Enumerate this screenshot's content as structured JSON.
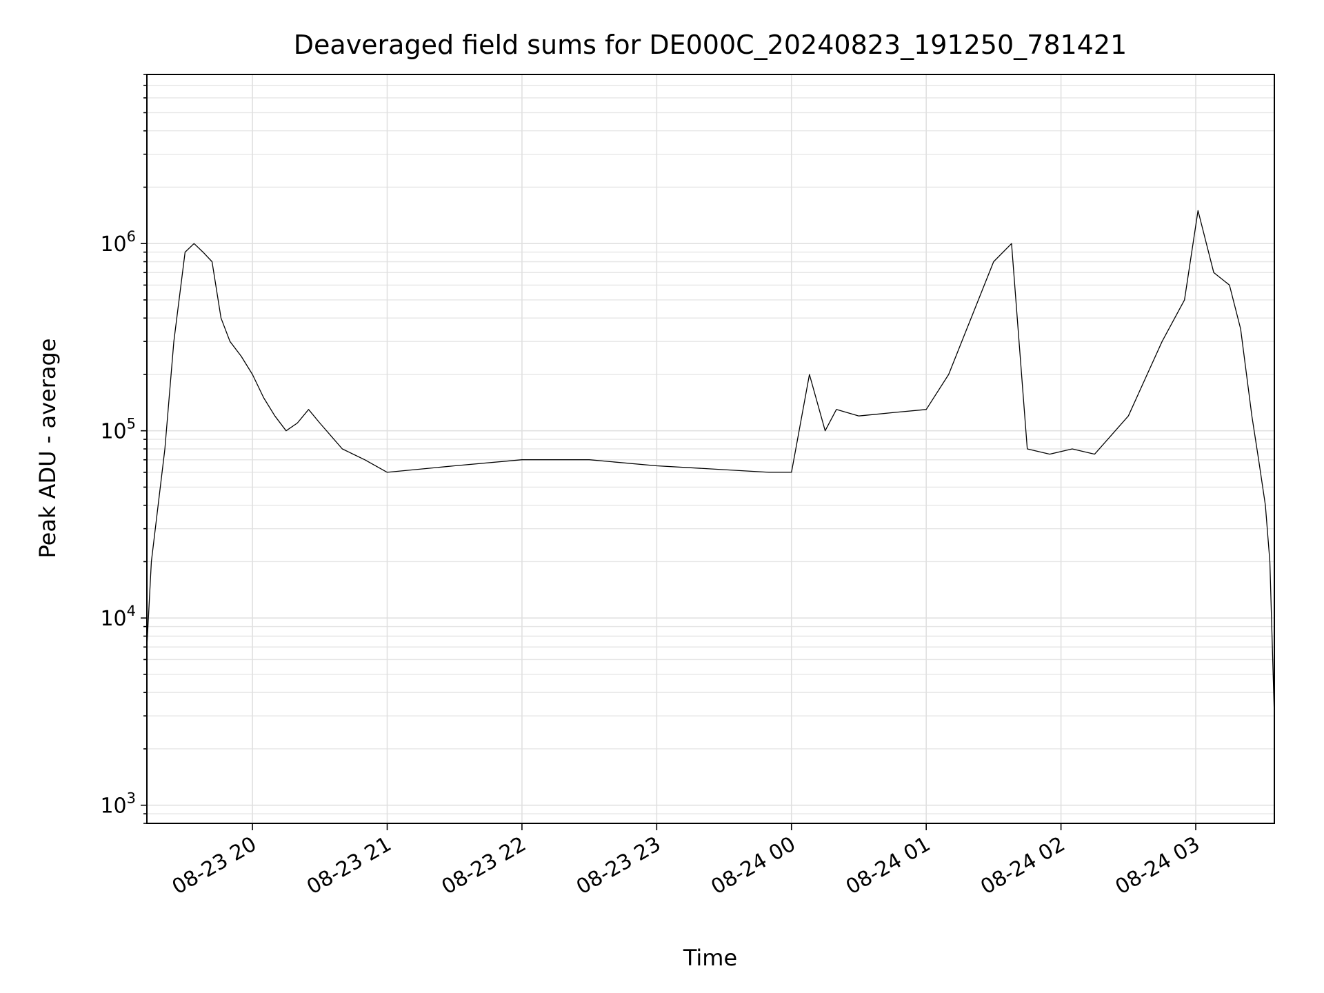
{
  "chart_data": {
    "type": "line",
    "title": "Deaveraged field sums for DE000C_20240823_191250_781421",
    "xlabel": "Time",
    "ylabel": "Peak ADU - average",
    "yscale": "log",
    "ylim": [
      800,
      8000000
    ],
    "xlim": [
      "2024-08-23 19:13",
      "2024-08-24 03:35"
    ],
    "grid": true,
    "x_tick_labels": [
      {
        "value": "2024-08-23 20:00",
        "label": "08-23 20"
      },
      {
        "value": "2024-08-23 21:00",
        "label": "08-23 21"
      },
      {
        "value": "2024-08-23 22:00",
        "label": "08-23 22"
      },
      {
        "value": "2024-08-23 23:00",
        "label": "08-23 23"
      },
      {
        "value": "2024-08-24 00:00",
        "label": "08-24 00"
      },
      {
        "value": "2024-08-24 01:00",
        "label": "08-24 01"
      },
      {
        "value": "2024-08-24 02:00",
        "label": "08-24 02"
      },
      {
        "value": "2024-08-24 03:00",
        "label": "08-24 03"
      }
    ],
    "y_tick_labels": [
      {
        "value": 1000,
        "base": "10",
        "exp": "3"
      },
      {
        "value": 10000,
        "base": "10",
        "exp": "4"
      },
      {
        "value": 100000,
        "base": "10",
        "exp": "5"
      },
      {
        "value": 1000000,
        "base": "10",
        "exp": "6"
      }
    ],
    "series": [
      {
        "color": "#000000",
        "x": [
          "2024-08-23 19:13",
          "2024-08-23 19:15",
          "2024-08-23 19:18",
          "2024-08-23 19:21",
          "2024-08-23 19:25",
          "2024-08-23 19:30",
          "2024-08-23 19:34",
          "2024-08-23 19:38",
          "2024-08-23 19:42",
          "2024-08-23 19:46",
          "2024-08-23 19:50",
          "2024-08-23 19:55",
          "2024-08-23 20:00",
          "2024-08-23 20:05",
          "2024-08-23 20:10",
          "2024-08-23 20:15",
          "2024-08-23 20:20",
          "2024-08-23 20:25",
          "2024-08-23 20:30",
          "2024-08-23 20:40",
          "2024-08-23 20:50",
          "2024-08-23 21:00",
          "2024-08-23 21:30",
          "2024-08-23 22:00",
          "2024-08-23 22:30",
          "2024-08-23 23:00",
          "2024-08-23 23:30",
          "2024-08-23 23:50",
          "2024-08-24 00:00",
          "2024-08-24 00:08",
          "2024-08-24 00:15",
          "2024-08-24 00:20",
          "2024-08-24 00:30",
          "2024-08-24 00:45",
          "2024-08-24 01:00",
          "2024-08-24 01:10",
          "2024-08-24 01:20",
          "2024-08-24 01:30",
          "2024-08-24 01:38",
          "2024-08-24 01:45",
          "2024-08-24 01:55",
          "2024-08-24 02:05",
          "2024-08-24 02:15",
          "2024-08-24 02:30",
          "2024-08-24 02:45",
          "2024-08-24 02:55",
          "2024-08-24 03:01",
          "2024-08-24 03:08",
          "2024-08-24 03:15",
          "2024-08-24 03:20",
          "2024-08-24 03:25",
          "2024-08-24 03:28",
          "2024-08-24 03:31",
          "2024-08-24 03:33",
          "2024-08-24 03:35"
        ],
        "y": [
          7000,
          20000,
          40000,
          80000,
          300000,
          900000,
          1000000,
          900000,
          800000,
          400000,
          300000,
          250000,
          200000,
          150000,
          120000,
          100000,
          110000,
          130000,
          110000,
          80000,
          70000,
          60000,
          65000,
          70000,
          70000,
          65000,
          62000,
          60000,
          60000,
          200000,
          100000,
          130000,
          120000,
          125000,
          130000,
          200000,
          400000,
          800000,
          1000000,
          80000,
          75000,
          80000,
          75000,
          120000,
          300000,
          500000,
          1500000,
          700000,
          600000,
          350000,
          120000,
          70000,
          40000,
          20000,
          3000
        ]
      }
    ]
  }
}
